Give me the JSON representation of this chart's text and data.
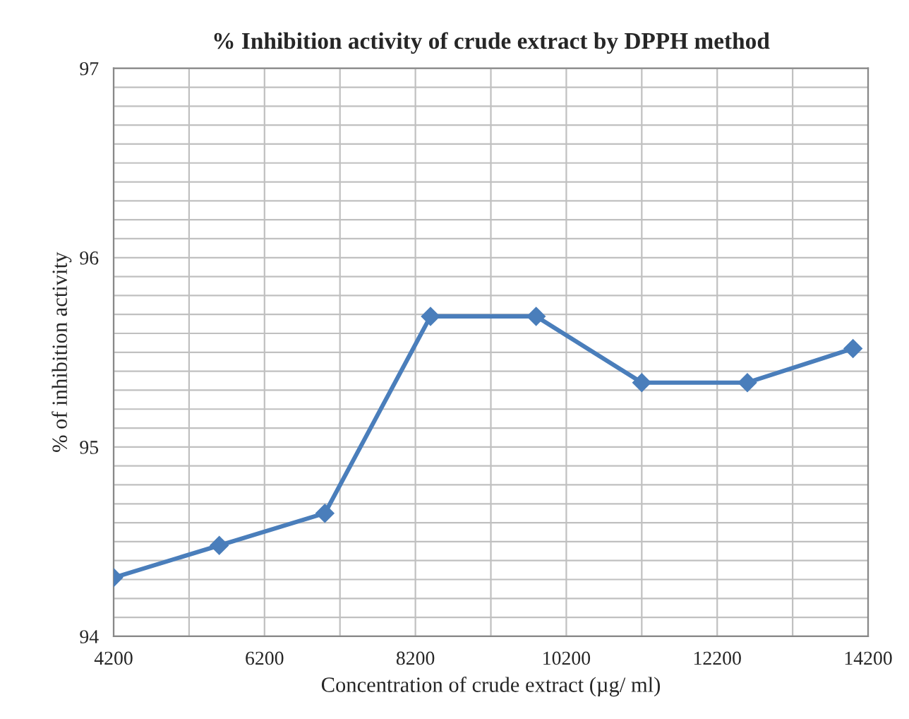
{
  "chart_data": {
    "type": "line",
    "title": "% Inhibition activity of crude extract by DPPH method",
    "xlabel": "Concentration of crude extract (µg/ ml)",
    "ylabel": "% of inhibition activity",
    "x": [
      4200,
      5600,
      7000,
      8400,
      9800,
      11200,
      12600,
      14000
    ],
    "series": [
      {
        "color": "#4a7ebb",
        "values": [
          94.31,
          94.48,
          94.65,
          95.69,
          95.69,
          95.34,
          95.34,
          95.52
        ]
      }
    ],
    "xlim": [
      4200,
      14200
    ],
    "xticks": [
      4200,
      {
        "value": 5200,
        "label": null
      },
      6200,
      {
        "value": 7200,
        "label": null
      },
      8200,
      {
        "value": 9200,
        "label": null
      },
      10200,
      {
        "value": 11200,
        "label": null
      },
      12200,
      {
        "value": 13200,
        "label": null
      },
      14200
    ],
    "ylim": [
      94,
      97
    ],
    "yticks": [
      94,
      {
        "value": 94.1,
        "label": null
      },
      {
        "value": 94.2,
        "label": null
      },
      {
        "value": 94.3,
        "label": null
      },
      {
        "value": 94.4,
        "label": null
      },
      {
        "value": 94.5,
        "label": null
      },
      {
        "value": 94.6,
        "label": null
      },
      {
        "value": 94.7,
        "label": null
      },
      {
        "value": 94.8,
        "label": null
      },
      {
        "value": 94.9,
        "label": null
      },
      95,
      {
        "value": 95.1,
        "label": null
      },
      {
        "value": 95.2,
        "label": null
      },
      {
        "value": 95.3,
        "label": null
      },
      {
        "value": 95.4,
        "label": null
      },
      {
        "value": 95.5,
        "label": null
      },
      {
        "value": 95.6,
        "label": null
      },
      {
        "value": 95.7,
        "label": null
      },
      {
        "value": 95.8,
        "label": null
      },
      {
        "value": 95.9,
        "label": null
      },
      96,
      {
        "value": 96.1,
        "label": null
      },
      {
        "value": 96.2,
        "label": null
      },
      {
        "value": 96.3,
        "label": null
      },
      {
        "value": 96.4,
        "label": null
      },
      {
        "value": 96.5,
        "label": null
      },
      {
        "value": 96.6,
        "label": null
      },
      {
        "value": 96.7,
        "label": null
      },
      {
        "value": 96.8,
        "label": null
      },
      {
        "value": 96.9,
        "label": null
      },
      97
    ],
    "grid": true,
    "marker": "diamond",
    "line_style": "solid"
  }
}
